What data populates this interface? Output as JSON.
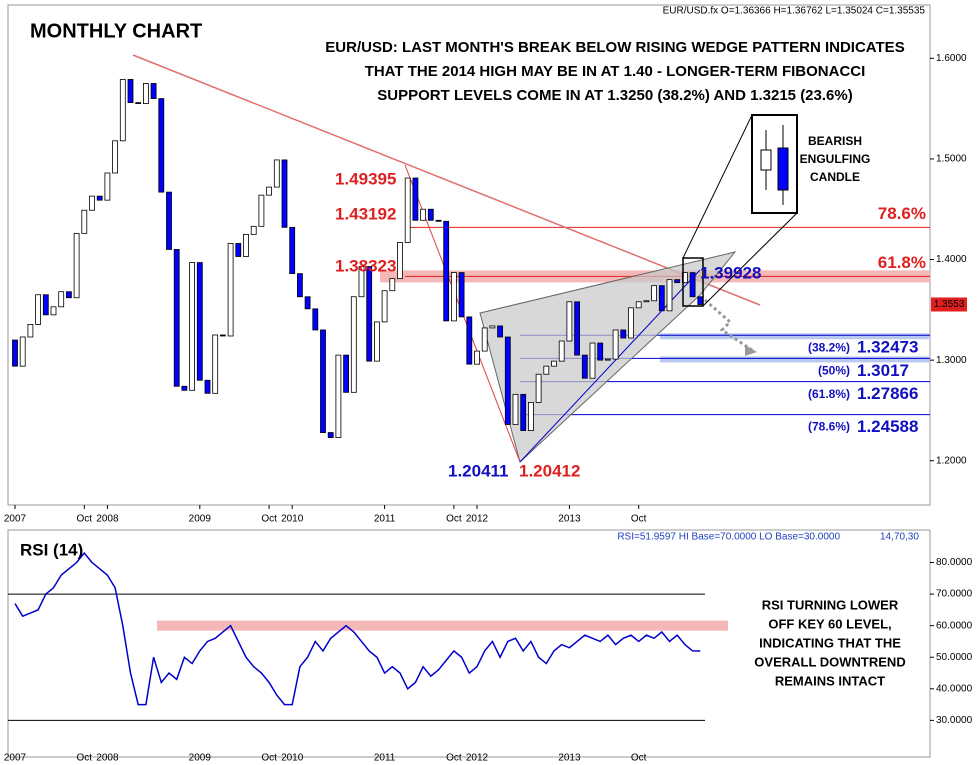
{
  "chart_data": [
    {
      "type": "candlestick",
      "title": "MONTHLY CHART",
      "subtitle": [
        "EUR/USD: LAST MONTH'S BREAK BELOW RISING WEDGE PATTERN INDICATES",
        "THAT THE 2014 HIGH MAY BE IN AT 1.40 - LONGER-TERM FIBONACCI",
        "SUPPORT LEVELS COME IN AT 1.3250 (38.2%) AND 1.3215 (23.6%)"
      ],
      "header": "EUR/USD.fx O=1.36366 H=1.36762 L=1.35024 C=1.35535",
      "open": [
        1.32,
        1.294,
        1.323,
        1.3355,
        1.365,
        1.345,
        1.353,
        1.368,
        1.362,
        1.426,
        1.449,
        1.463,
        1.459,
        1.486,
        1.518,
        1.579,
        1.556,
        1.555,
        1.575,
        1.56,
        1.467,
        1.41,
        1.274,
        1.27,
        1.397,
        1.28,
        1.267,
        1.325,
        1.324,
        1.416,
        1.403,
        1.425,
        1.433,
        1.464,
        1.472,
        1.499,
        1.432,
        1.386,
        1.363,
        1.351,
        1.33,
        1.228,
        1.223,
        1.305,
        1.268,
        1.363,
        1.393,
        1.299,
        1.338,
        1.369,
        1.381,
        1.417,
        1.481,
        1.439,
        1.45,
        1.439,
        1.438,
        1.339,
        1.387,
        1.343,
        1.296,
        1.309,
        1.332,
        1.334,
        1.323,
        1.236,
        1.266,
        1.23,
        1.258,
        1.286,
        1.294,
        1.299,
        1.319,
        1.358,
        1.305,
        1.282,
        1.317,
        1.3,
        1.301,
        1.33,
        1.322,
        1.352,
        1.358,
        1.359,
        1.374,
        1.349,
        1.38,
        1.377,
        1.387,
        1.363
      ],
      "close": [
        1.294,
        1.323,
        1.3355,
        1.365,
        1.345,
        1.353,
        1.368,
        1.362,
        1.426,
        1.449,
        1.463,
        1.459,
        1.486,
        1.518,
        1.579,
        1.556,
        1.555,
        1.575,
        1.56,
        1.467,
        1.41,
        1.274,
        1.27,
        1.397,
        1.28,
        1.267,
        1.325,
        1.324,
        1.416,
        1.403,
        1.425,
        1.433,
        1.464,
        1.472,
        1.499,
        1.432,
        1.386,
        1.363,
        1.351,
        1.33,
        1.228,
        1.223,
        1.305,
        1.268,
        1.363,
        1.393,
        1.299,
        1.338,
        1.369,
        1.381,
        1.417,
        1.481,
        1.439,
        1.45,
        1.439,
        1.438,
        1.339,
        1.387,
        1.343,
        1.296,
        1.309,
        1.332,
        1.334,
        1.323,
        1.236,
        1.266,
        1.23,
        1.258,
        1.286,
        1.294,
        1.299,
        1.319,
        1.358,
        1.305,
        1.282,
        1.317,
        1.3,
        1.301,
        1.33,
        1.322,
        1.352,
        1.358,
        1.359,
        1.374,
        1.349,
        1.38,
        1.377,
        1.387,
        1.363,
        1.3553
      ],
      "up_color": "#ffffff",
      "down_color": "#0000ff",
      "ylim": [
        1.156,
        1.653
      ],
      "yticks": [
        {
          "value": 1.6,
          "label": "1.6000"
        },
        {
          "value": 1.5,
          "label": "1.5000"
        },
        {
          "value": 1.4,
          "label": "1.4000"
        },
        {
          "value": 1.3,
          "label": "1.3000"
        },
        {
          "value": 1.2,
          "label": "1.2000"
        }
      ],
      "xticks": [
        {
          "value": 0,
          "label": "2007"
        },
        {
          "value": 9,
          "label": "Oct"
        },
        {
          "value": 12,
          "label": "2008"
        },
        {
          "value": 24,
          "label": "2009"
        },
        {
          "value": 33,
          "label": "Oct"
        },
        {
          "value": 36,
          "label": "2010"
        },
        {
          "value": 48,
          "label": "2011"
        },
        {
          "value": 57,
          "label": "Oct"
        },
        {
          "value": 60,
          "label": "2012"
        },
        {
          "value": 72,
          "label": "2013"
        },
        {
          "value": 81,
          "label": "Oct"
        }
      ],
      "fib_levels": [
        {
          "pct": "(38.2%)",
          "price": 1.32473,
          "highlight": true
        },
        {
          "pct": "(50%)",
          "price": 1.3017,
          "highlight": true
        },
        {
          "pct": "(61.8%)",
          "price": 1.27866,
          "highlight": false
        },
        {
          "pct": "(78.6%)",
          "price": 1.24588,
          "highlight": false
        }
      ],
      "retracements": [
        {
          "pct": "78.6%",
          "price": 1.43192
        },
        {
          "pct": "61.8%",
          "price": 1.38323
        }
      ],
      "level_labels": [
        1.49395,
        1.43192,
        1.38323
      ],
      "swing_lows": [
        1.20411,
        1.20412
      ],
      "wedge_high": 1.39928,
      "last_price": 1.3553,
      "callout": [
        "BEARISH",
        "ENGULFING",
        "CANDLE"
      ]
    },
    {
      "type": "line",
      "title": "RSI (14)",
      "header": "RSI=51.9597 HI Base=70.0000 LO Base=30.0000",
      "params": "14,70,30",
      "values": [
        67,
        63,
        64,
        65,
        70,
        72,
        76,
        78,
        80,
        83,
        80,
        78,
        76,
        72,
        60,
        45,
        35,
        35,
        50,
        42,
        45,
        43,
        50,
        48,
        52,
        55,
        56,
        58,
        60,
        55,
        50,
        47,
        45,
        42,
        38,
        35,
        35,
        47,
        50,
        55,
        52,
        56,
        58,
        60,
        58,
        55,
        52,
        50,
        45,
        47,
        45,
        40,
        42,
        47,
        44,
        46,
        49,
        52,
        50,
        45,
        47,
        52,
        55,
        50,
        55,
        56,
        52,
        55,
        50,
        48,
        52,
        54,
        53,
        55,
        57,
        56,
        55,
        57,
        54,
        56,
        57,
        55,
        57,
        56,
        58,
        55,
        57,
        54,
        52,
        51.9597
      ],
      "color": "#0000cc",
      "ylim": [
        18.4,
        90.3
      ],
      "yticks": [
        {
          "value": 80,
          "label": "80.0000"
        },
        {
          "value": 70,
          "label": "70.0000"
        },
        {
          "value": 60,
          "label": "60.0000"
        },
        {
          "value": 50,
          "label": "50.0000"
        },
        {
          "value": 40,
          "label": "40.0000"
        },
        {
          "value": 30,
          "label": "30.0000"
        }
      ],
      "levels": [
        70,
        30
      ],
      "resistance": 60,
      "note": [
        "RSI TURNING LOWER",
        "OFF KEY 60 LEVEL,",
        "INDICATING THAT THE",
        "OVERALL DOWNTREND",
        "REMAINS INTACT"
      ]
    }
  ]
}
